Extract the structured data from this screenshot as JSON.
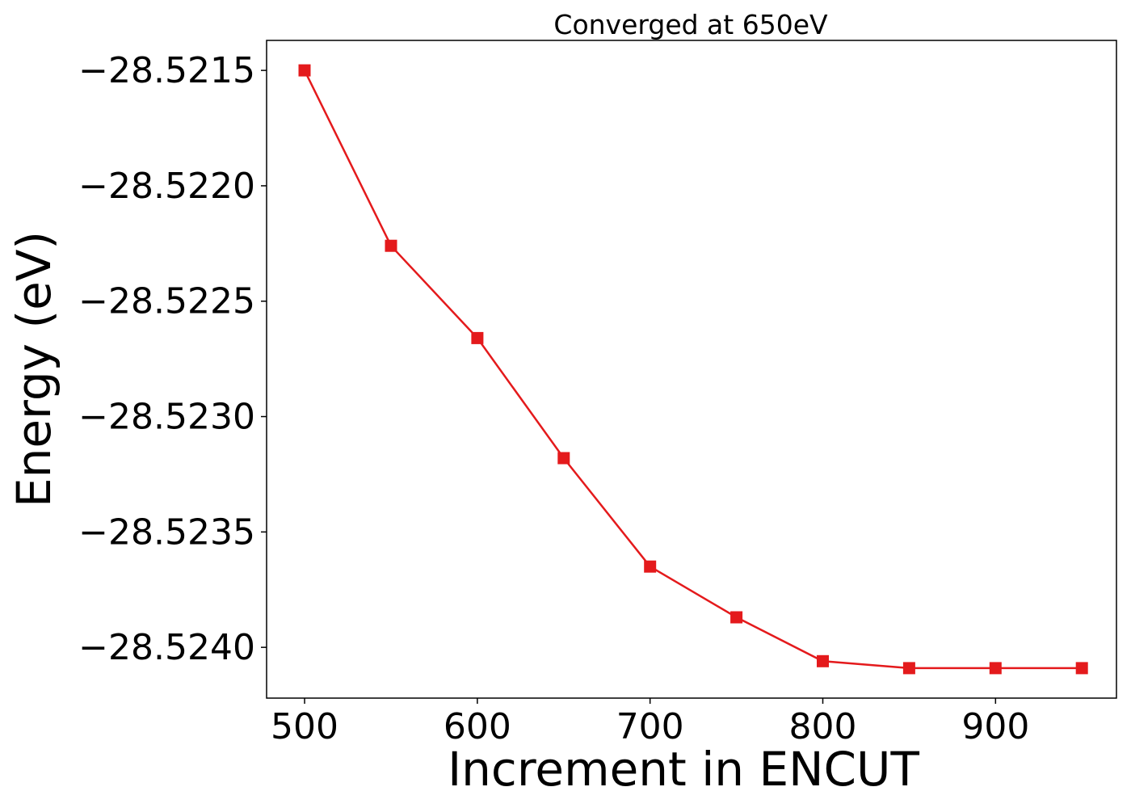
{
  "chart_data": {
    "type": "line",
    "title": "Converged at 650eV",
    "xlabel": "Increment in ENCUT",
    "ylabel": "Energy (eV)",
    "xlim": [
      478,
      970
    ],
    "ylim": [
      -28.52422,
      -28.52137
    ],
    "xticks": [
      500,
      600,
      700,
      800,
      900
    ],
    "xtick_labels": [
      "500",
      "600",
      "700",
      "800",
      "900"
    ],
    "yticks": [
      -28.5215,
      -28.522,
      -28.5225,
      -28.523,
      -28.5235,
      -28.524
    ],
    "ytick_labels": [
      "−28.5215",
      "−28.5220",
      "−28.5225",
      "−28.5230",
      "−28.5235",
      "−28.5240"
    ],
    "grid": false,
    "legend": "none",
    "series": [
      {
        "color": "#e41a1c",
        "marker": "square",
        "x": [
          500,
          550,
          600,
          650,
          700,
          750,
          800,
          850,
          900,
          950
        ],
        "y": [
          -28.5215,
          -28.52226,
          -28.52266,
          -28.52318,
          -28.52365,
          -28.52387,
          -28.52406,
          -28.52409,
          -28.52409,
          -28.52409
        ]
      }
    ]
  }
}
